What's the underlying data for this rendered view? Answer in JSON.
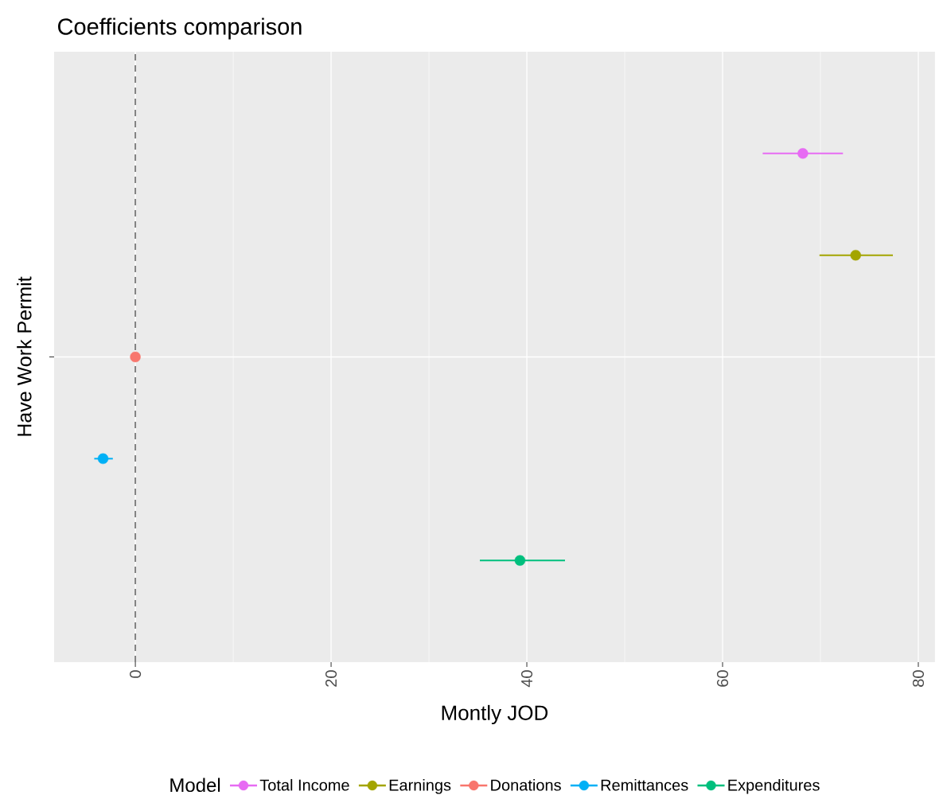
{
  "chart_data": {
    "type": "scatter",
    "orientation": "horizontal",
    "title": "Coefficients comparison",
    "xlabel": "Montly JOD",
    "ylabel": "Have Work Permit",
    "legend_title": "Model",
    "categories": [
      null
    ],
    "xlim": [
      -8.3,
      81.7
    ],
    "xticks": [
      0,
      20,
      40,
      60,
      80
    ],
    "grid": true,
    "legend": "bottom",
    "marker": "circle",
    "ref_lines": [
      {
        "axis": "x",
        "value": 0,
        "line_style": "dashed",
        "color": "#808080"
      }
    ],
    "series": [
      {
        "name": "Total Income",
        "color": "#e76bf3",
        "values": [
          68.2
        ],
        "errors": [
          [
            64.1,
            72.3
          ]
        ]
      },
      {
        "name": "Earnings",
        "color": "#a3a500",
        "values": [
          73.6
        ],
        "errors": [
          [
            69.9,
            77.4
          ]
        ]
      },
      {
        "name": "Donations",
        "color": "#f8766d",
        "values": [
          0.0
        ],
        "errors": [
          null
        ]
      },
      {
        "name": "Remittances",
        "color": "#00b0f6",
        "values": [
          -3.3
        ],
        "errors": [
          [
            -4.2,
            -2.3
          ]
        ]
      },
      {
        "name": "Expenditures",
        "color": "#00bf7d",
        "values": [
          39.3
        ],
        "errors": [
          [
            35.2,
            43.9
          ]
        ]
      }
    ]
  }
}
